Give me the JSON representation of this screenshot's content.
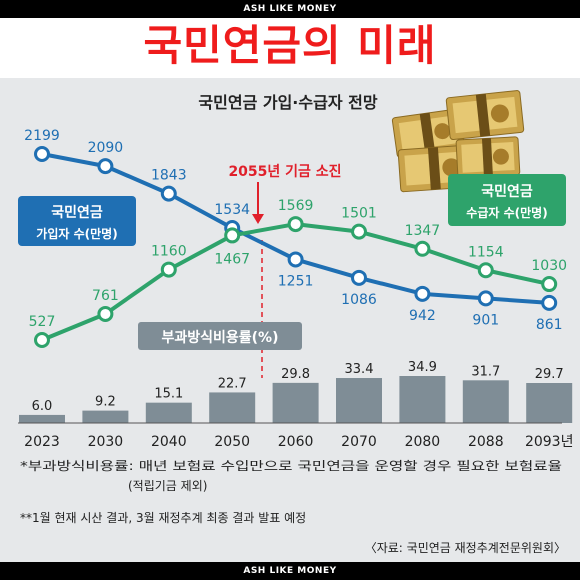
{
  "top_banner": "ASH LIKE MONEY",
  "bottom_banner": "ASH LIKE MONEY",
  "headline": "국민연금의 미래",
  "colors": {
    "headline": "#ef1c1c",
    "subscribers": "#1f6fb3",
    "recipients": "#2ea36b",
    "bars": "#7f8d96",
    "depletion": "#e0202b",
    "panel": "#e6e8ea"
  },
  "chart_data": {
    "type": "line+bar",
    "title": "국민연금 가입·수급자 전망",
    "categories": [
      "2023",
      "2030",
      "2040",
      "2050",
      "2060",
      "2070",
      "2080",
      "2088",
      "2093년"
    ],
    "series": [
      {
        "name": "국민연금 가입자 수(만명)",
        "name_lines": [
          "국민연금",
          "가입자 수(만명)"
        ],
        "type": "line",
        "values": [
          2199,
          2090,
          1843,
          1534,
          1251,
          1086,
          942,
          901,
          861
        ]
      },
      {
        "name": "국민연금 수급자 수(만명)",
        "name_lines": [
          "국민연금",
          "수급자 수(만명)"
        ],
        "type": "line",
        "values": [
          527,
          761,
          1160,
          1467,
          1569,
          1501,
          1347,
          1154,
          1030
        ]
      },
      {
        "name": "부과방식비용률(%)",
        "type": "bar",
        "values": [
          6.0,
          9.2,
          15.1,
          22.7,
          29.8,
          33.4,
          34.9,
          31.7,
          29.7
        ]
      }
    ],
    "annotation": "2055년 기금 소진",
    "legend": "inline-labels"
  },
  "footnotes": {
    "note1_line1": "*부과방식비용률: 매년 보험료 수입만으로 국민연금을 운영할 경우 필요한 보험료율",
    "note1_line2": "(적립기금 제외)",
    "note2": "**1월 현재 시산 결과, 3월 재정추계 최종 결과 발표 예정",
    "source": "〈자료: 국민연금 재정추계전문위원회〉"
  }
}
